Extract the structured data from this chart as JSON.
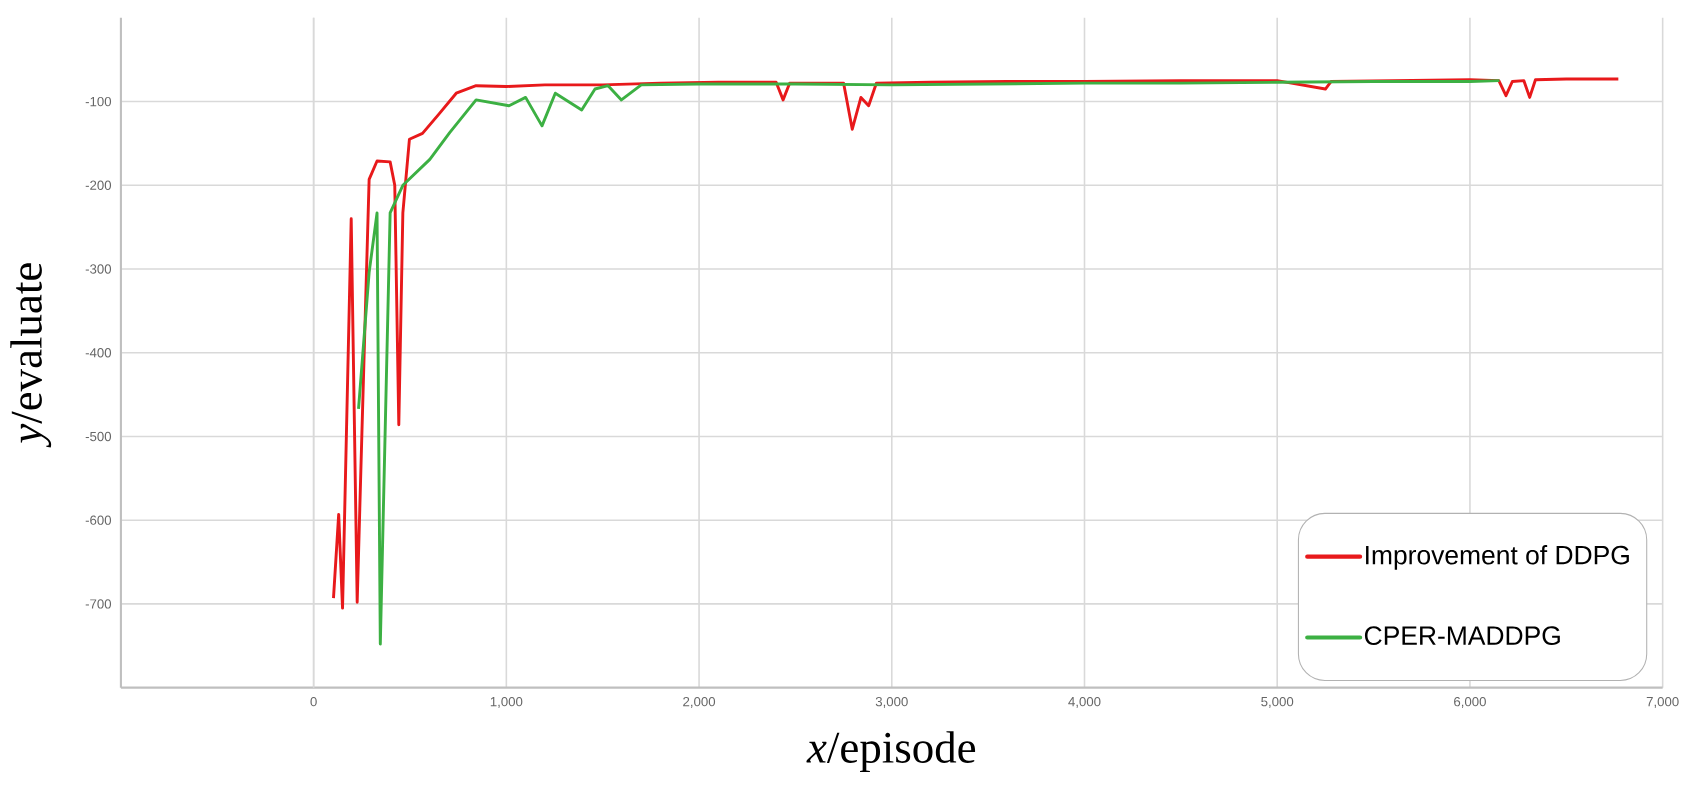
{
  "chart_data": {
    "type": "line",
    "xlabel": "*x*/episode",
    "ylabel": "*y*/evaluate",
    "xlim": [
      -1000,
      7000
    ],
    "ylim": [
      -800,
      0
    ],
    "xticks": [
      {
        "value": 0,
        "label": "0"
      },
      {
        "value": 1000,
        "label": "1,000"
      },
      {
        "value": 2000,
        "label": "2,000"
      },
      {
        "value": 3000,
        "label": "3,000"
      },
      {
        "value": 4000,
        "label": "4,000"
      },
      {
        "value": 5000,
        "label": "5,000"
      },
      {
        "value": 6000,
        "label": "6,000"
      },
      {
        "value": 7000,
        "label": "7,000"
      }
    ],
    "yticks": [
      -700,
      -600,
      -500,
      -400,
      -300,
      -200,
      -100
    ],
    "grid": true,
    "legend": "bottom right",
    "line_style": "solid",
    "series": [
      {
        "name": "Improvement of DDPG",
        "color": "#e8191b",
        "x": [
          103,
          130,
          150,
          195,
          226,
          250,
          288,
          329,
          397,
          421,
          442,
          463,
          497,
          565,
          650,
          740,
          843,
          1000,
          1200,
          1500,
          1800,
          2100,
          2400,
          2436,
          2470,
          2750,
          2795,
          2840,
          2880,
          2920,
          3200,
          3600,
          4000,
          4500,
          5000,
          5250,
          5280,
          5600,
          6000,
          6150,
          6187,
          6220,
          6280,
          6310,
          6340,
          6500,
          6770
        ],
        "values": [
          -693,
          -593,
          -705,
          -240,
          -698,
          -500,
          -193,
          -171,
          -172,
          -200,
          -486,
          -233,
          -145,
          -138,
          -115,
          -90,
          -81,
          -82,
          -80,
          -80,
          -78,
          -77,
          -77,
          -98,
          -78,
          -78,
          -133,
          -95,
          -105,
          -78,
          -77,
          -76,
          -76,
          -75,
          -75,
          -85,
          -76,
          -75,
          -74,
          -75,
          -93,
          -76,
          -75,
          -95,
          -74,
          -73,
          -73
        ]
      },
      {
        "name": "CPER-MADDPG",
        "color": "#3cb043",
        "x": [
          233,
          288,
          329,
          346,
          397,
          463,
          603,
          706,
          843,
          1014,
          1100,
          1185,
          1254,
          1391,
          1460,
          1528,
          1597,
          1700,
          2000,
          2500,
          3000,
          3500,
          4000,
          4500,
          5000,
          5500,
          6000,
          6153
        ],
        "values": [
          -467,
          -304,
          -233,
          -748,
          -233,
          -200,
          -169,
          -137,
          -98,
          -105,
          -95,
          -129,
          -90,
          -110,
          -85,
          -81,
          -98,
          -80,
          -79,
          -79,
          -80,
          -79,
          -78,
          -78,
          -77,
          -76,
          -76,
          -75
        ]
      }
    ]
  }
}
